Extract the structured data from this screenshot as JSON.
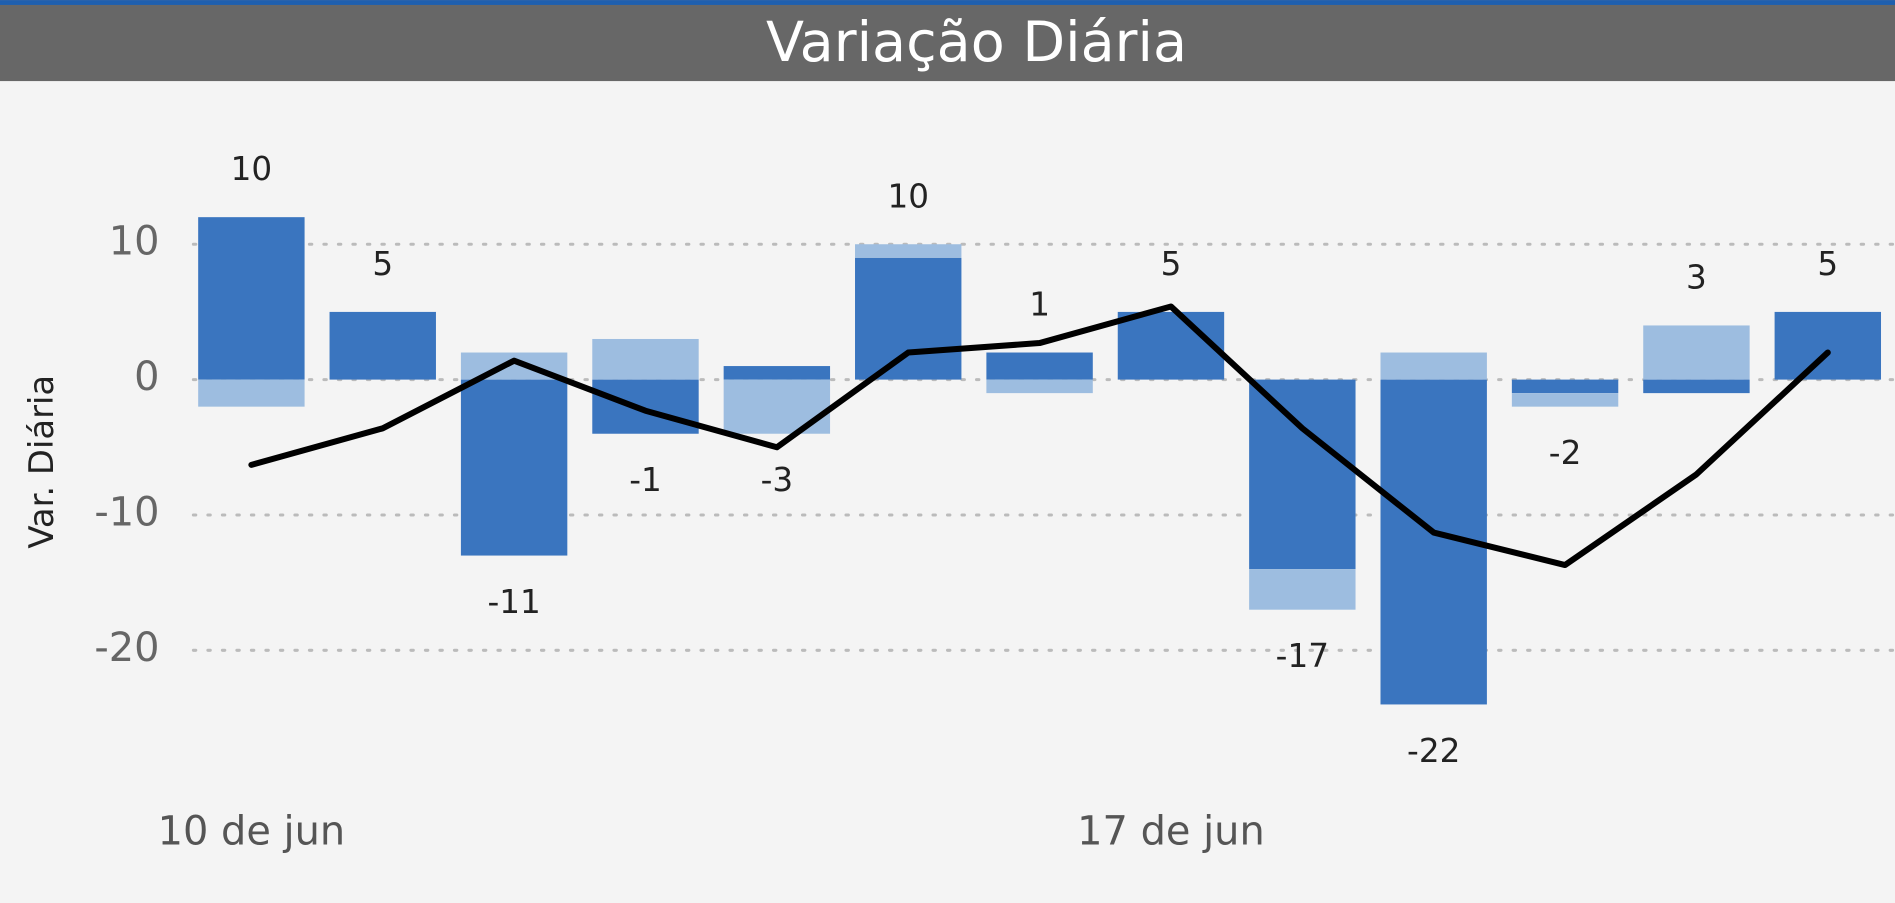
{
  "chart_data": {
    "type": "bar",
    "title": "Variação Diária",
    "y_label": "Var. Diária",
    "categories": [
      "10 de jun",
      null,
      null,
      null,
      null,
      null,
      null,
      "17 de jun",
      null,
      null,
      null,
      null,
      null
    ],
    "series": [
      {
        "color": "#3a75bf",
        "values": [
          12,
          5,
          -13,
          -4,
          1,
          9,
          2,
          5,
          -14,
          -24,
          -1,
          -1,
          5
        ]
      },
      {
        "color": "#9dbde0",
        "values": [
          -2,
          0,
          2,
          3,
          -4,
          1,
          -1,
          0,
          -3,
          2,
          -1,
          4,
          0
        ]
      },
      {
        "type": "line",
        "color": "#000000",
        "values": [
          -6.3,
          -3.6,
          1.4,
          -2.3,
          -5,
          2,
          2.7,
          5.4,
          -3.6,
          -11.3,
          -13.7,
          -7,
          2
        ]
      }
    ],
    "totals": [
      10,
      5,
      -11,
      -1,
      -3,
      10,
      1,
      5,
      -17,
      -22,
      -2,
      3,
      5
    ],
    "ylim": [
      -28,
      18
    ],
    "yticks": [
      10,
      0,
      -10,
      -20
    ],
    "grid": true
  }
}
